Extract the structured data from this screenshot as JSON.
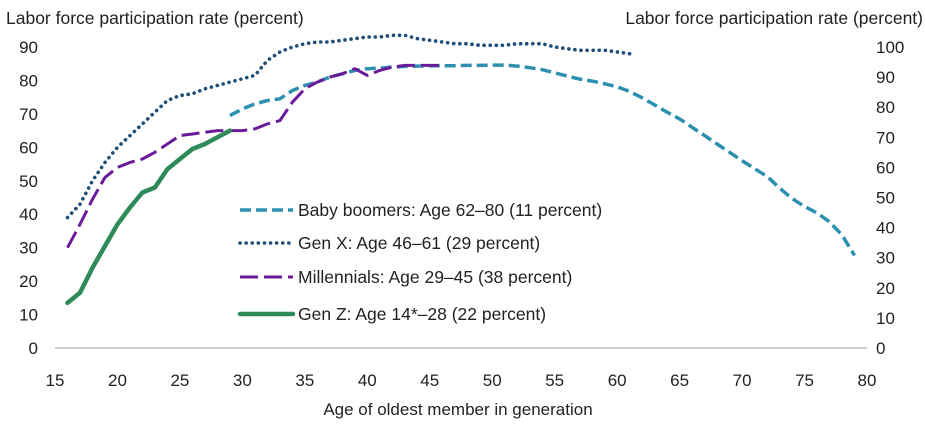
{
  "chart_data": {
    "type": "line",
    "xlabel": "Age of oldest member in generation",
    "ylabel_left": "Labor force participation rate (percent)",
    "ylabel_right": "Labor force participation rate (percent)",
    "xlim": [
      15,
      80
    ],
    "ylim_left": [
      0,
      90
    ],
    "ylim_right": [
      0,
      100
    ],
    "x_ticks": [
      "15",
      "20",
      "25",
      "30",
      "35",
      "40",
      "45",
      "50",
      "55",
      "60",
      "65",
      "70",
      "75",
      "80"
    ],
    "y_left_ticks": [
      "0",
      "10",
      "20",
      "30",
      "40",
      "50",
      "60",
      "70",
      "80",
      "90"
    ],
    "y_right_ticks": [
      "0",
      "10",
      "20",
      "30",
      "40",
      "50",
      "60",
      "70",
      "80",
      "90",
      "100"
    ],
    "grid": false,
    "legend_position": "center-left",
    "series": [
      {
        "name": "Baby boomers: Age 62–80 (11 percent)",
        "style": "dashed",
        "color": "#2e90b0",
        "axis": "left",
        "x": [
          29,
          30,
          31,
          32,
          33,
          34,
          35,
          36,
          37,
          38,
          39,
          40,
          41,
          42,
          43,
          44,
          45,
          46,
          47,
          48,
          49,
          50,
          51,
          52,
          53,
          54,
          55,
          56,
          57,
          58,
          59,
          60,
          61,
          62,
          63,
          64,
          65,
          66,
          67,
          68,
          69,
          70,
          71,
          72,
          73,
          74,
          75,
          76,
          77,
          78,
          79
        ],
        "y": [
          69.5,
          71.5,
          73.0,
          74.0,
          74.5,
          77.0,
          78.5,
          79.5,
          81.0,
          82.0,
          83.0,
          83.5,
          83.7,
          84.0,
          84.2,
          84.3,
          84.4,
          84.4,
          84.4,
          84.5,
          84.5,
          84.6,
          84.6,
          84.3,
          83.8,
          83.2,
          82.3,
          81.3,
          80.4,
          79.8,
          79.0,
          78.1,
          76.7,
          74.8,
          72.7,
          70.5,
          68.5,
          66.0,
          63.5,
          61.0,
          58.5,
          56.0,
          53.6,
          51.3,
          47.8,
          44.7,
          42.3,
          40.4,
          37.7,
          33.8,
          27.7
        ]
      },
      {
        "name": "Gen X: Age 46–61 (29 percent)",
        "style": "dotted",
        "color": "#1f4e79",
        "axis": "left",
        "x": [
          16,
          17,
          18,
          19,
          20,
          21,
          22,
          23,
          24,
          25,
          26,
          27,
          28,
          29,
          30,
          31,
          32,
          33,
          34,
          35,
          36,
          37,
          38,
          39,
          40,
          41,
          42,
          43,
          44,
          45,
          46,
          47,
          48,
          49,
          50,
          51,
          52,
          53,
          54,
          55,
          56,
          57,
          58,
          59,
          60,
          61
        ],
        "y": [
          39.0,
          43.0,
          50.0,
          55.5,
          60.0,
          63.5,
          67.0,
          70.5,
          74.0,
          75.5,
          76.0,
          77.5,
          78.5,
          79.5,
          80.5,
          81.5,
          86.0,
          88.5,
          90.0,
          91.0,
          91.5,
          91.5,
          92.0,
          92.5,
          93.0,
          93.0,
          93.5,
          93.5,
          92.5,
          92.0,
          91.5,
          91.0,
          91.0,
          90.5,
          90.5,
          90.5,
          91.0,
          91.0,
          91.0,
          90.0,
          89.5,
          89.0,
          89.0,
          89.0,
          88.5,
          88.0
        ]
      },
      {
        "name": "Millennials: Age 29–45 (38 percent)",
        "style": "long-dash",
        "color": "#6a1b9a",
        "axis": "left",
        "x": [
          16,
          17,
          18,
          19,
          20,
          21,
          22,
          23,
          24,
          25,
          26,
          27,
          28,
          29,
          30,
          31,
          32,
          33,
          34,
          35,
          36,
          37,
          38,
          39,
          40,
          41,
          42,
          43,
          44,
          45,
          46
        ],
        "y": [
          30.0,
          37.0,
          44.5,
          51.0,
          54.0,
          55.5,
          56.5,
          58.5,
          61.0,
          63.5,
          64.0,
          64.5,
          65.0,
          65.0,
          65.0,
          65.5,
          67.0,
          68.0,
          73.5,
          77.5,
          79.5,
          81.0,
          82.0,
          83.5,
          81.5,
          83.0,
          84.0,
          84.5,
          84.5,
          84.5,
          84.5
        ]
      },
      {
        "name": "Gen Z: Age 14*–28 (22 percent)",
        "style": "solid",
        "color": "#2e8b57",
        "axis": "left",
        "x": [
          16,
          17,
          18,
          19,
          20,
          21,
          22,
          23,
          24,
          25,
          26,
          27,
          28,
          29
        ],
        "y": [
          13.5,
          16.5,
          24.0,
          30.5,
          37.0,
          42.0,
          46.5,
          48.0,
          53.5,
          56.5,
          59.5,
          61.0,
          63.0,
          65.0
        ]
      }
    ]
  }
}
